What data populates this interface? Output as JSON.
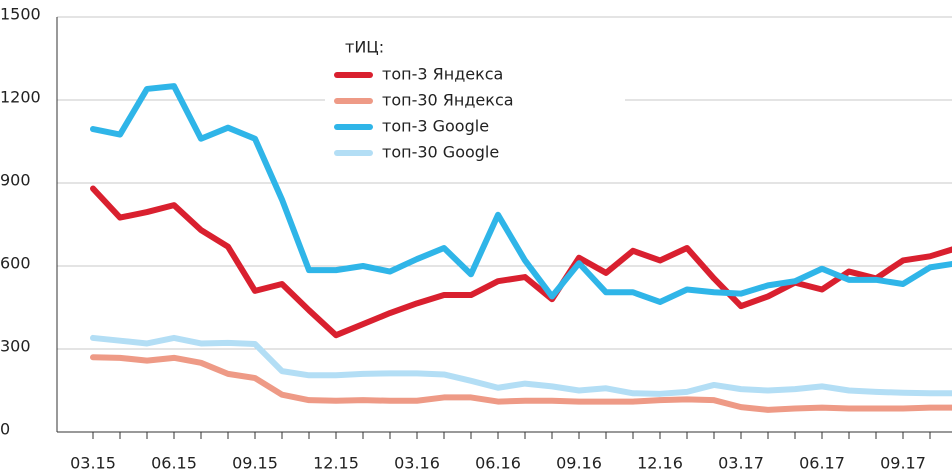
{
  "chart_data": {
    "type": "line",
    "legend_title": "тИЦ:",
    "legend": "top",
    "grid": true,
    "categories": [
      "03.15",
      null,
      null,
      "06.15",
      null,
      null,
      "09.15",
      null,
      null,
      "12.15",
      null,
      null,
      "03.16",
      null,
      null,
      "06.16",
      null,
      null,
      "09.16",
      null,
      null,
      "12.16",
      null,
      null,
      "03.17",
      null,
      null,
      "06.17",
      null,
      null,
      "09.17",
      null,
      null
    ],
    "ylim": [
      0,
      1500
    ],
    "yticks": [
      0,
      300,
      600,
      900,
      1200,
      1500
    ],
    "series": [
      {
        "name": "топ-3 Яндекса",
        "color": "#d9202f",
        "width": 6,
        "values": [
          880,
          775,
          795,
          820,
          730,
          670,
          510,
          535,
          440,
          350,
          390,
          430,
          465,
          495,
          495,
          545,
          560,
          480,
          630,
          575,
          655,
          620,
          665,
          555,
          455,
          490,
          540,
          515,
          580,
          555,
          620,
          635,
          665
        ]
      },
      {
        "name": "топ-30 Яндекса",
        "color": "#ee9a86",
        "width": 6,
        "values": [
          270,
          268,
          258,
          268,
          250,
          210,
          195,
          135,
          115,
          113,
          115,
          113,
          113,
          125,
          125,
          110,
          113,
          113,
          110,
          110,
          110,
          115,
          118,
          115,
          90,
          80,
          85,
          88,
          85,
          85,
          85,
          88,
          88
        ]
      },
      {
        "name": "топ-3 Google",
        "color": "#2fb5e8",
        "width": 6,
        "values": [
          1095,
          1075,
          1240,
          1250,
          1060,
          1100,
          1060,
          840,
          585,
          585,
          600,
          580,
          625,
          665,
          570,
          785,
          620,
          490,
          610,
          505,
          505,
          470,
          515,
          505,
          500,
          530,
          545,
          590,
          550,
          550,
          535,
          595,
          610
        ]
      },
      {
        "name": "топ-30 Google",
        "color": "#b3def5",
        "width": 6,
        "values": [
          340,
          330,
          320,
          340,
          320,
          322,
          318,
          220,
          205,
          205,
          210,
          212,
          212,
          208,
          185,
          160,
          175,
          165,
          150,
          158,
          140,
          138,
          145,
          170,
          155,
          150,
          155,
          165,
          150,
          145,
          142,
          140,
          140
        ]
      }
    ]
  }
}
